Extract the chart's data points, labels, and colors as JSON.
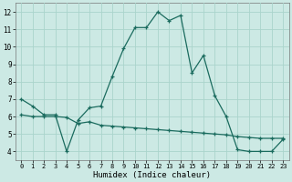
{
  "xlabel": "Humidex (Indice chaleur)",
  "bg_color": "#cce9e4",
  "grid_color": "#aad4cc",
  "line_color": "#1a6b5e",
  "x_values": [
    0,
    1,
    2,
    3,
    4,
    5,
    6,
    7,
    8,
    9,
    10,
    11,
    12,
    13,
    14,
    15,
    16,
    17,
    18,
    19,
    20,
    21,
    22,
    23
  ],
  "series1": [
    7.0,
    6.6,
    6.1,
    6.1,
    4.0,
    5.8,
    6.5,
    6.6,
    8.3,
    9.9,
    11.1,
    11.1,
    12.0,
    11.5,
    11.8,
    8.5,
    9.5,
    7.2,
    6.0,
    4.1,
    4.0,
    4.0,
    4.0,
    4.7
  ],
  "series2": [
    6.1,
    6.0,
    6.0,
    6.0,
    5.95,
    5.6,
    5.7,
    5.5,
    5.45,
    5.4,
    5.35,
    5.3,
    5.25,
    5.2,
    5.15,
    5.1,
    5.05,
    5.0,
    4.95,
    4.85,
    4.8,
    4.75,
    4.75,
    4.75
  ],
  "ylim": [
    3.5,
    12.5
  ],
  "xlim": [
    -0.5,
    23.5
  ],
  "yticks": [
    4,
    5,
    6,
    7,
    8,
    9,
    10,
    11,
    12
  ],
  "xticks": [
    0,
    1,
    2,
    3,
    4,
    5,
    6,
    7,
    8,
    9,
    10,
    11,
    12,
    13,
    14,
    15,
    16,
    17,
    18,
    19,
    20,
    21,
    22,
    23
  ],
  "ylabel_fontsize": 5.5,
  "xlabel_fontsize": 6.5,
  "tick_fontsize": 5,
  "linewidth": 0.9,
  "markersize": 3.5,
  "markeredgewidth": 0.9
}
